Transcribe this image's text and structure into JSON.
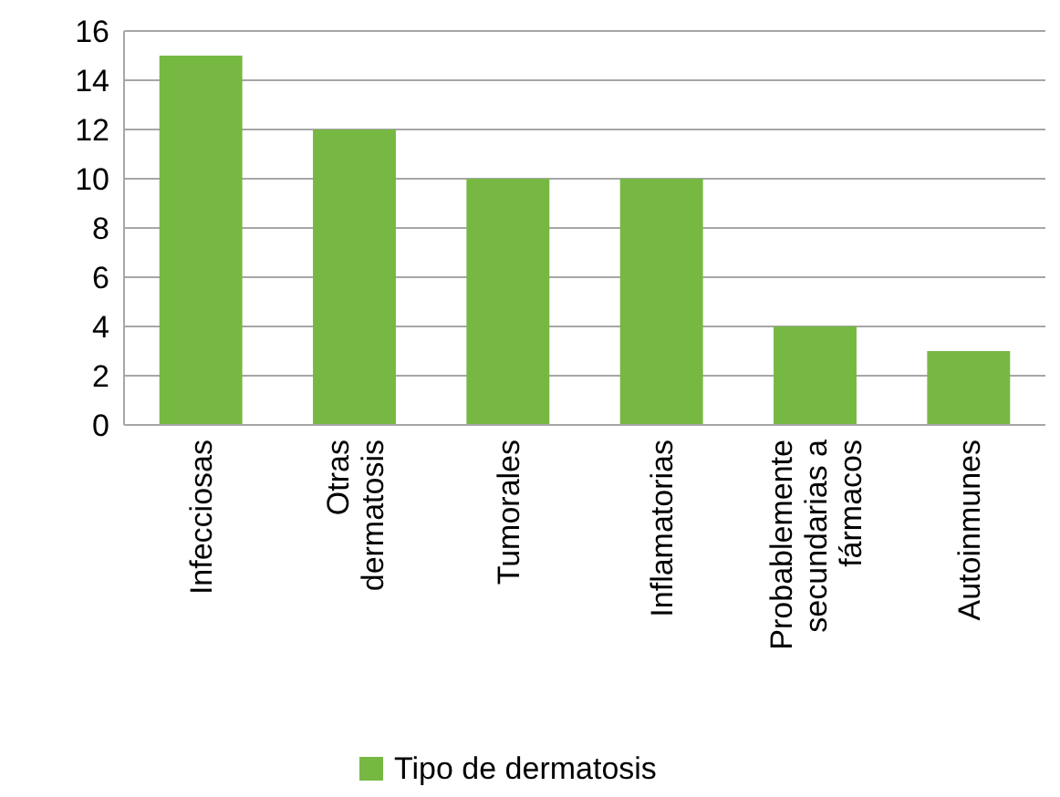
{
  "chart_data": {
    "type": "bar",
    "categories": [
      "Infecciosas",
      "Otras dermatosis",
      "Tumorales",
      "Inflamatorias",
      "Probablemente secundarias a fármacos",
      "Autoinmunes"
    ],
    "series": [
      {
        "name": "Tipo de dermatosis",
        "color": "#77b843",
        "values": [
          15,
          12,
          10,
          10,
          4,
          3
        ]
      }
    ],
    "ylim": [
      0,
      16
    ],
    "yticks": [
      0,
      2,
      4,
      6,
      8,
      10,
      12,
      14,
      16
    ],
    "grid": "y",
    "legend": "bottom"
  }
}
